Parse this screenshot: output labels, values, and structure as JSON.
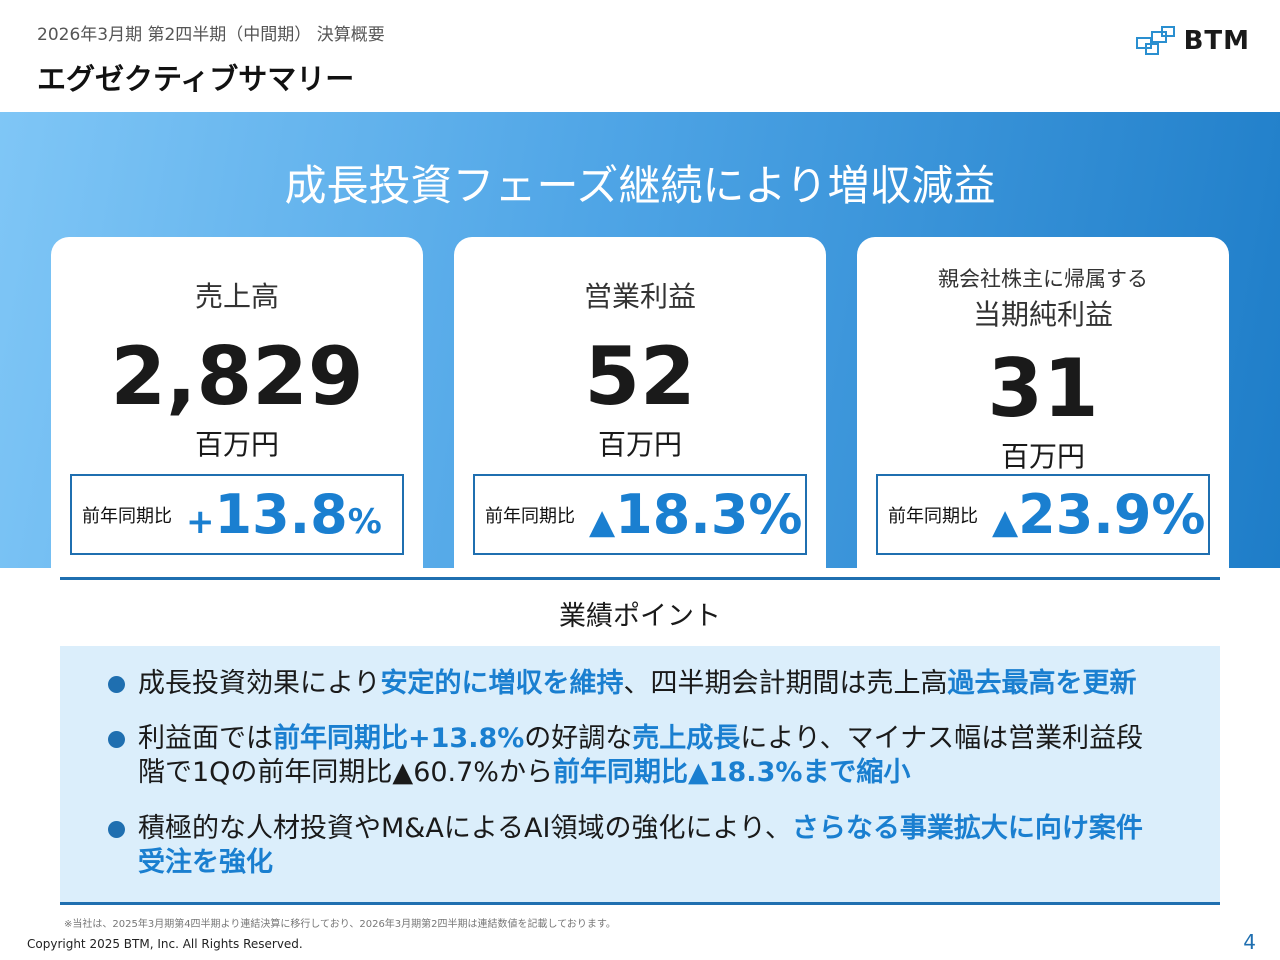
{
  "header": {
    "subtitle": "2026年3月期 第2四半期（中間期） 決算概要",
    "title": "エグゼクティブサマリー",
    "logo": "BTM"
  },
  "headline": "成長投資フェーズ継続により増収減益",
  "cards": [
    {
      "label": "売上高",
      "value": "2,829",
      "unit": "百万円",
      "yoy_label": "前年同期比",
      "yoy_sign": "+",
      "yoy_value": "13.8",
      "yoy_pct": "%"
    },
    {
      "label": "営業利益",
      "value": "52",
      "unit": "百万円",
      "yoy_label": "前年同期比",
      "yoy_sign": "▲",
      "yoy_value": "18.3",
      "yoy_pct": "%"
    },
    {
      "label_small": "親会社株主に帰属する",
      "label": "当期純利益",
      "value": "31",
      "unit": "百万円",
      "yoy_label": "前年同期比",
      "yoy_sign": "▲",
      "yoy_value": "23.9",
      "yoy_pct": "%"
    }
  ],
  "points_title": "業績ポイント",
  "bullets": [
    [
      "成長投資効果により",
      "安定的に増収を維持",
      "、四半期会計期間は売上高",
      "過去最高を更新"
    ],
    [
      "利益面では",
      "前年同期比+13.8%",
      "の好調な",
      "売上成長",
      "により、マイナス幅は営業利益段階で1Qの前年同期比▲60.7%から",
      "前年同期比▲18.3%まで縮小"
    ],
    [
      "積極的な人材投資やM&AによるAI領域の強化により、",
      "さらなる事業拡大に向け案件受注を強化"
    ]
  ],
  "footnote": "※当社は、2025年3月期第4四半期より連結決算に移行しており、2026年3月期第2四半期は連結数値を記載しております。",
  "copyright": "Copyright 2025 BTM, Inc. All Rights Reserved.",
  "page_number": "4"
}
